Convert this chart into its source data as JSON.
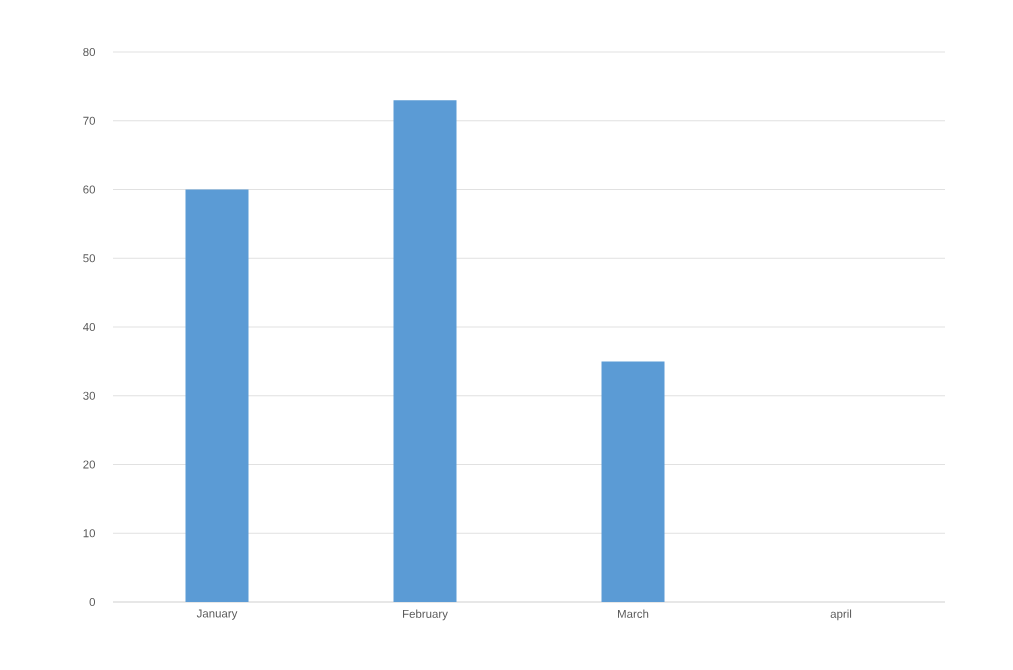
{
  "chart_data": {
    "type": "bar",
    "categories": [
      "January",
      "February",
      "March",
      "april"
    ],
    "values": [
      60,
      73,
      35,
      null
    ],
    "color": "#5b9bd5",
    "ylim": [
      0,
      80
    ],
    "yticks": [
      0,
      10,
      20,
      30,
      40,
      50,
      60,
      70,
      80
    ],
    "grid": "y"
  }
}
